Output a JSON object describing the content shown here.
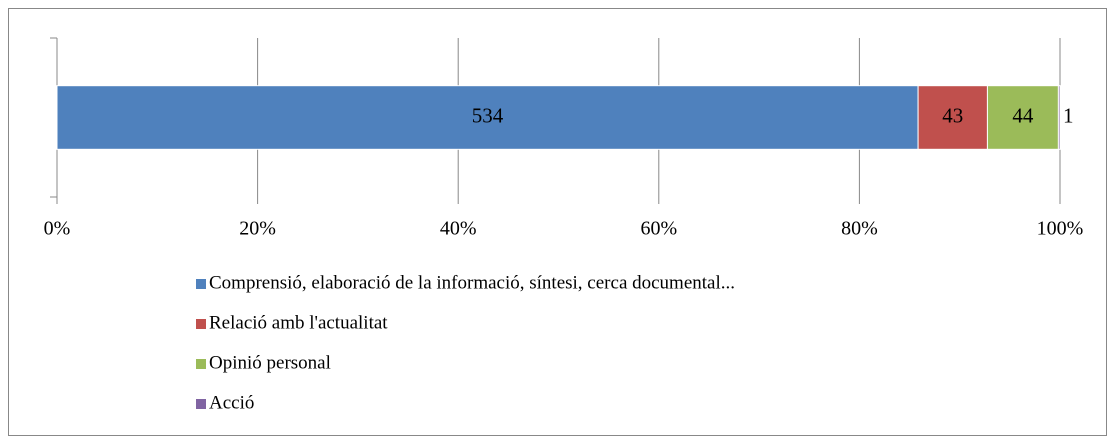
{
  "chart_data": {
    "type": "stacked-bar-100",
    "orientation": "horizontal",
    "categories": [
      null
    ],
    "series": [
      {
        "name": "Comprensió, elaboració de la informació, síntesi, cerca documental...",
        "color": "#4f81bd",
        "values": [
          534
        ]
      },
      {
        "name": "Relació amb l'actualitat",
        "color": "#c0504d",
        "values": [
          43
        ]
      },
      {
        "name": "Opinió personal",
        "color": "#9bbb59",
        "values": [
          44
        ]
      },
      {
        "name": "Acció",
        "color": "#8064a2",
        "values": [
          1
        ]
      }
    ],
    "xlim": [
      0,
      100
    ],
    "xticks": [
      {
        "value": 0,
        "label": "0%"
      },
      {
        "value": 20,
        "label": "20%"
      },
      {
        "value": 40,
        "label": "40%"
      },
      {
        "value": 60,
        "label": "60%"
      },
      {
        "value": 80,
        "label": "80%"
      },
      {
        "value": 100,
        "label": "100%"
      }
    ],
    "grid": true,
    "legend": "bottom"
  }
}
